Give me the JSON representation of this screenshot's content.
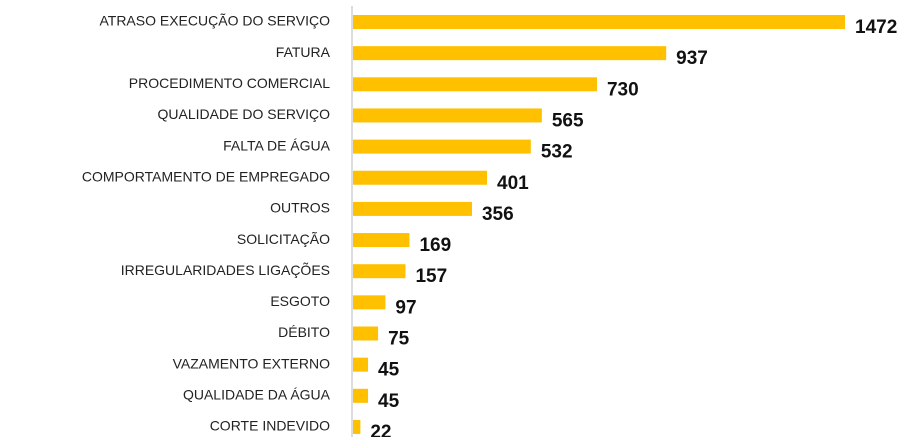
{
  "chart_data": {
    "type": "bar",
    "orientation": "horizontal",
    "categories": [
      "ATRASO EXECUÇÃO DO SERVIÇO",
      "FATURA",
      "PROCEDIMENTO COMERCIAL",
      "QUALIDADE DO SERVIÇO",
      "FALTA DE ÁGUA",
      "COMPORTAMENTO DE EMPREGADO",
      "OUTROS",
      "SOLICITAÇÃO",
      "IRREGULARIDADES LIGAÇÕES",
      "ESGOTO",
      "DÉBITO",
      "VAZAMENTO EXTERNO",
      "QUALIDADE DA ÁGUA",
      "CORTE INDEVIDO"
    ],
    "values": [
      1472,
      937,
      730,
      565,
      532,
      401,
      356,
      169,
      157,
      97,
      75,
      45,
      45,
      22
    ],
    "color": "#ffc000"
  }
}
